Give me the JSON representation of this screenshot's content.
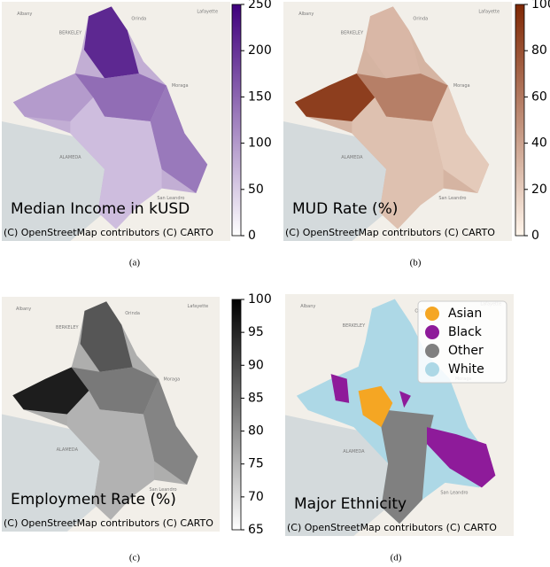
{
  "panels": [
    {
      "title": "Median Income in kUSD",
      "attribution": "(C) OpenStreetMap contributors (C) CARTO",
      "caption": "(a)",
      "colorbar": {
        "colors": [
          "#ffffff",
          "#3f007d"
        ],
        "lim": [
          0,
          250
        ],
        "ticks": [
          0,
          50,
          100,
          150,
          200,
          250
        ]
      }
    },
    {
      "title": "MUD Rate (%)",
      "attribution": "(C) OpenStreetMap contributors (C) CARTO",
      "caption": "(b)",
      "colorbar": {
        "colors": [
          "#fff5eb",
          "#7f2704"
        ],
        "lim": [
          0,
          100
        ],
        "ticks": [
          0,
          20,
          40,
          60,
          80,
          100
        ]
      }
    },
    {
      "title": "Employment Rate (%)",
      "attribution": "(C) OpenStreetMap contributors (C) CARTO",
      "caption": "(c)",
      "colorbar": {
        "colors": [
          "#ffffff",
          "#000000"
        ],
        "lim": [
          65,
          100
        ],
        "ticks": [
          65,
          70,
          75,
          80,
          85,
          90,
          95,
          100
        ]
      }
    },
    {
      "title": "Major Ethnicity",
      "attribution": "(C) OpenStreetMap contributors (C) CARTO",
      "caption": "(d)",
      "legend": [
        {
          "name": "Asian",
          "color": "#f5a623"
        },
        {
          "name": "Black",
          "color": "#8e1b9a"
        },
        {
          "name": "Other",
          "color": "#808080"
        },
        {
          "name": "White",
          "color": "#add8e6"
        }
      ]
    }
  ],
  "place_names": [
    "Albany",
    "BERKELEY",
    "Orinda",
    "Lafayette",
    "Moraga",
    "ALAMEDA",
    "San Leandro"
  ]
}
